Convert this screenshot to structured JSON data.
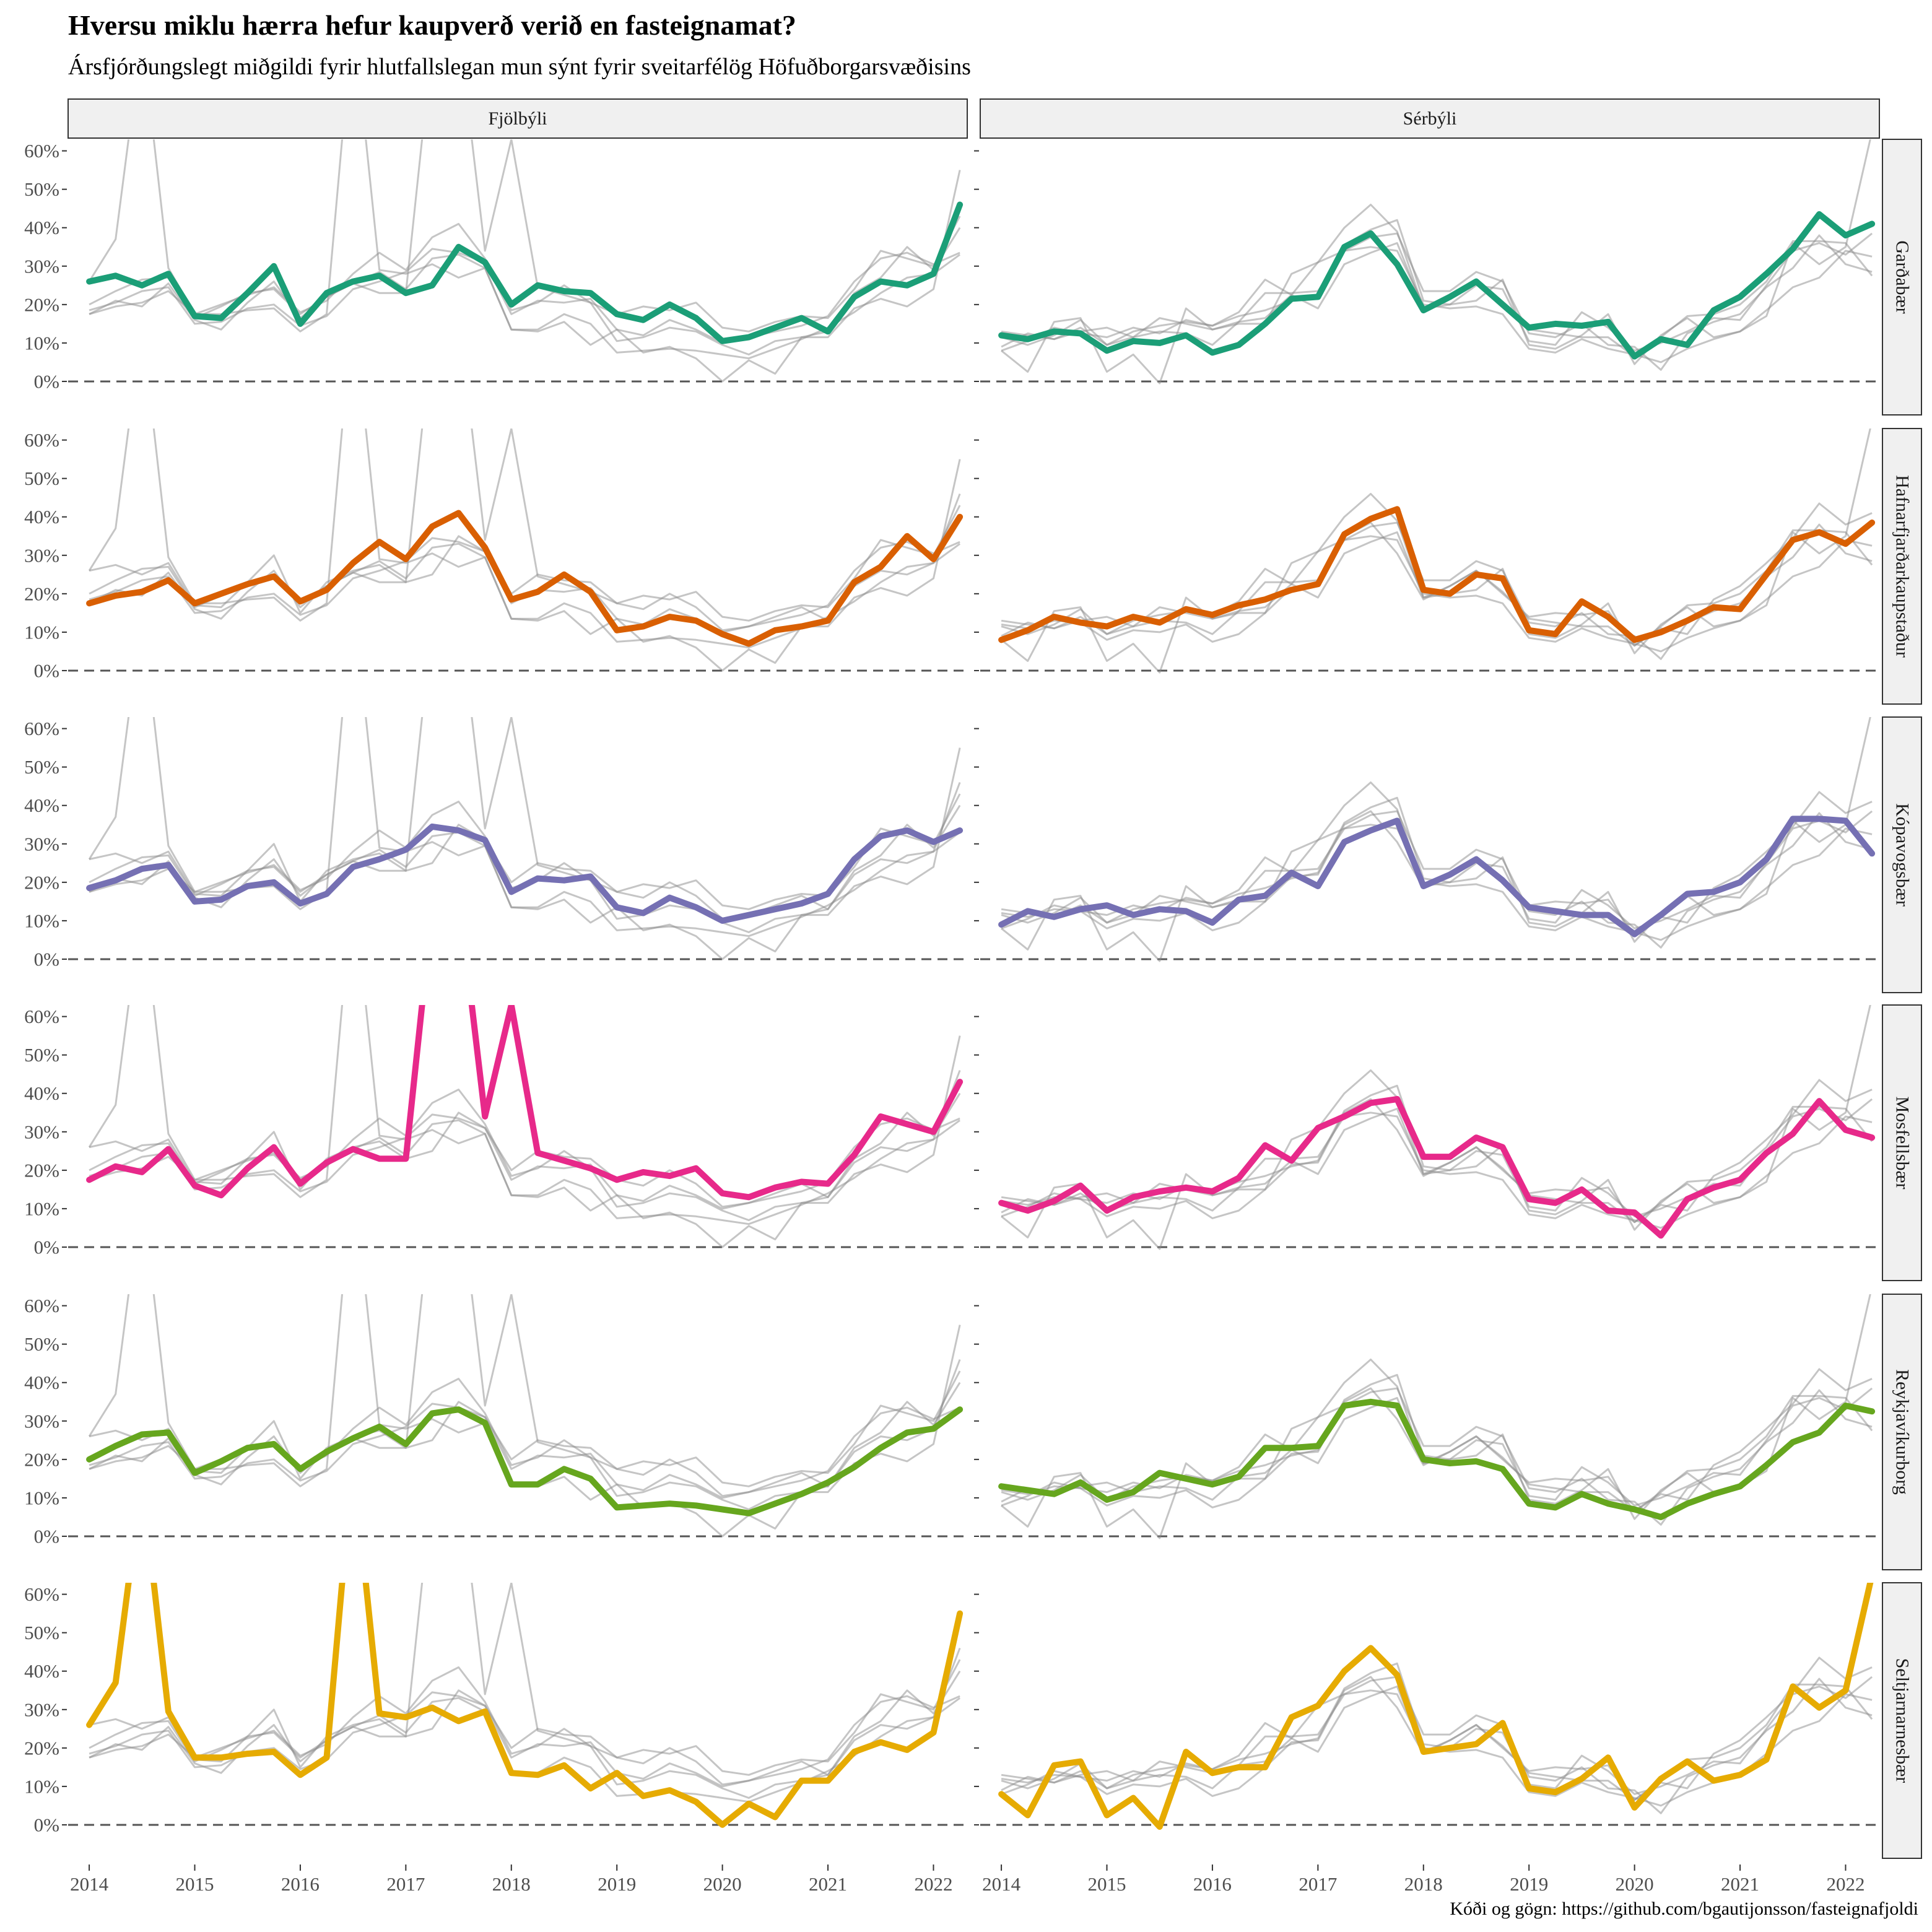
{
  "title": "Hversu miklu hærra hefur kaupverð verið en fasteignamat?",
  "subtitle": "Ársfjórðungslegt miðgildi fyrir hlutfallslegan mun sýnt fyrir sveitarfélög Höfuðborgarsvæðisins",
  "caption": "Kóði og gögn: https://github.com/bgautijonsson/fasteignafjoldi",
  "colors": {
    "Garðabær": "#1b9e77",
    "Hafnarfjarðarkaupstaður": "#d95f02",
    "Kópavogsbær": "#7570b3",
    "Mosfellsbær": "#e7298a",
    "Reykjavíkurborg": "#66a61e",
    "Seltjarnarnesbær": "#e6ab02",
    "background_lines": "#8c8c8c",
    "strip_fill": "#f0f0f0"
  },
  "chart_data": {
    "type": "line",
    "facet_columns": [
      "Fjölbýli",
      "Sérbýli"
    ],
    "facet_rows": [
      "Garðabær",
      "Hafnarfjarðarkaupstaður",
      "Kópavogsbær",
      "Mosfellsbær",
      "Reykjavíkurborg",
      "Seltjarnarnesbær"
    ],
    "x": [
      2014.0,
      2014.25,
      2014.5,
      2014.75,
      2015.0,
      2015.25,
      2015.5,
      2015.75,
      2016.0,
      2016.25,
      2016.5,
      2016.75,
      2017.0,
      2017.25,
      2017.5,
      2017.75,
      2018.0,
      2018.25,
      2018.5,
      2018.75,
      2019.0,
      2019.25,
      2019.5,
      2019.75,
      2020.0,
      2020.25,
      2020.5,
      2020.75,
      2021.0,
      2021.25,
      2021.5,
      2021.75,
      2022.0,
      2022.25
    ],
    "x_ticks": [
      "2014",
      "2015",
      "2016",
      "2017",
      "2018",
      "2019",
      "2020",
      "2021",
      "2022"
    ],
    "y_ticks": [
      "0%",
      "10%",
      "20%",
      "30%",
      "40%",
      "50%",
      "60%"
    ],
    "ylim": [
      -10,
      63
    ],
    "reference_line": 0,
    "series": {
      "Fjölbýli": {
        "Garðabær": [
          26,
          27.5,
          25,
          28,
          17,
          16.5,
          23,
          30,
          15,
          23,
          26,
          27.5,
          23,
          25,
          35,
          31,
          20,
          25,
          23.5,
          23,
          17.5,
          16,
          20,
          16.5,
          10.5,
          11.5,
          14,
          16.5,
          13,
          22,
          26,
          25,
          28,
          46
        ],
        "Hafnarfjarðarkaupstaður": [
          17.5,
          19.5,
          20.5,
          23.5,
          17.5,
          20,
          22.5,
          24.5,
          18,
          21,
          28,
          33.5,
          29,
          37.5,
          41,
          32,
          18.5,
          20.5,
          25,
          20.5,
          10.5,
          11.5,
          14,
          13,
          9.5,
          7,
          10.5,
          11.5,
          13,
          23,
          27,
          35,
          29,
          40
        ],
        "Kópavogsbær": [
          18.5,
          20.5,
          23.5,
          24.5,
          15,
          15.5,
          19,
          20,
          14.5,
          17,
          24,
          26,
          28.5,
          34.5,
          33.5,
          31,
          17.5,
          21,
          20.5,
          21.5,
          13.5,
          12,
          16,
          13.5,
          10,
          11.5,
          13,
          14.5,
          17,
          26,
          32,
          33.5,
          30.5,
          33.5
        ],
        "Mosfellsbær": [
          17.5,
          21,
          19.5,
          25.5,
          16,
          13.5,
          20.5,
          26,
          16.5,
          22,
          25.5,
          23,
          23,
          88,
          92,
          34,
          63,
          24.5,
          22.5,
          20.5,
          17.5,
          19.5,
          18.5,
          20.5,
          14,
          13,
          15.5,
          17,
          16.5,
          24,
          34,
          32,
          30,
          43
        ],
        "Reykjavíkurborg": [
          20,
          23.5,
          26.5,
          27,
          16.5,
          19.5,
          23,
          24,
          17.5,
          22,
          25.5,
          28.5,
          24,
          32,
          33,
          29.5,
          13.5,
          13.5,
          17.5,
          15,
          7.5,
          8,
          8.5,
          8,
          7,
          6,
          8.5,
          11,
          14,
          18,
          23,
          27,
          28,
          33
        ],
        "Seltjarnarnesbær": [
          26,
          37,
          90,
          29.5,
          17.5,
          17.5,
          18.5,
          19,
          13,
          17.5,
          95,
          29,
          28,
          30.5,
          27,
          29.5,
          13.5,
          13,
          15.5,
          9.5,
          13.5,
          7.5,
          9,
          6,
          0,
          5.5,
          2,
          11.5,
          11.5,
          19,
          21.5,
          19.5,
          24,
          55
        ]
      },
      "Sérbýli": {
        "Garðabær": [
          12,
          11,
          13,
          12.5,
          8,
          10.5,
          10,
          12,
          7.5,
          9.5,
          15,
          21.5,
          22,
          35,
          38.5,
          30.5,
          18.5,
          22,
          26,
          20,
          14,
          15,
          14.5,
          15.5,
          6.5,
          11,
          9.5,
          18.5,
          22,
          28,
          34.5,
          43.5,
          38,
          41
        ],
        "Hafnarfjarðarkaupstaður": [
          8,
          10.5,
          14,
          12.5,
          11.5,
          14,
          12.5,
          16,
          14.5,
          17,
          18.5,
          21,
          22.5,
          35.5,
          39.5,
          42,
          21,
          20,
          25,
          24,
          10.5,
          9.5,
          18,
          14,
          8,
          10,
          13,
          16.5,
          16,
          25,
          34,
          36,
          33,
          38.5
        ],
        "Kópavogsbær": [
          9,
          12.5,
          11,
          13,
          14,
          11.5,
          13,
          12.5,
          9.5,
          15.5,
          16.5,
          22.5,
          19,
          30.5,
          33.5,
          36,
          19,
          22,
          26,
          20.5,
          13.5,
          12.5,
          11.5,
          11.5,
          6.5,
          11.5,
          17,
          17.5,
          20,
          26,
          36.5,
          36.5,
          36,
          27.5
        ],
        "Mosfellsbær": [
          11.5,
          9.5,
          12,
          16,
          9.5,
          13,
          14.5,
          15.5,
          14.5,
          18,
          26.5,
          22.5,
          31,
          34,
          37.5,
          38.5,
          23.5,
          23.5,
          28.5,
          26,
          12.5,
          11.5,
          15,
          9.5,
          9,
          3,
          12.5,
          15.5,
          17.5,
          24.5,
          29.5,
          38,
          30.5,
          28.5
        ],
        "Reykjavíkurborg": [
          13,
          12,
          11,
          14,
          9.5,
          11.5,
          16.5,
          15,
          13.5,
          15.5,
          23,
          23,
          23.5,
          34,
          35,
          34,
          20,
          19,
          19.5,
          17.5,
          8.5,
          7.5,
          11,
          8.5,
          7,
          5,
          8.5,
          11,
          13,
          18.5,
          24.5,
          27,
          34,
          32.5
        ],
        "Seltjarnarnesbær": [
          8,
          2.5,
          15.5,
          16.5,
          2.5,
          7,
          -0.5,
          19,
          13.5,
          15,
          15,
          28,
          31,
          40,
          46,
          39,
          19,
          20,
          21,
          26.5,
          9.5,
          8.5,
          12,
          17.5,
          4.5,
          12,
          16.5,
          11.5,
          13,
          17,
          36,
          30.5,
          35,
          65
        ]
      }
    }
  }
}
